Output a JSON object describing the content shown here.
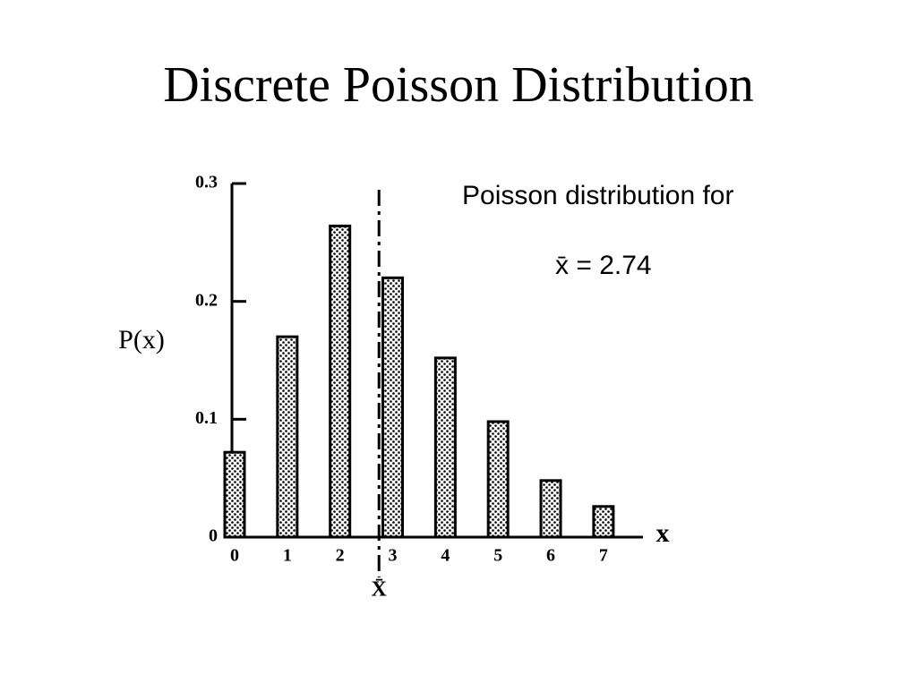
{
  "chart_data": {
    "type": "bar",
    "title": "Discrete Poisson Distribution",
    "x": [
      0,
      1,
      2,
      3,
      4,
      5,
      6,
      7
    ],
    "values": [
      0.072,
      0.17,
      0.264,
      0.22,
      0.152,
      0.098,
      0.048,
      0.026
    ],
    "color": "#000000",
    "xlim": [
      0,
      7.75
    ],
    "xticks": [
      0,
      1,
      2,
      3,
      4,
      5,
      6,
      7
    ],
    "ylim": [
      0,
      0.3
    ],
    "yticks": [
      0,
      0.1,
      0.2,
      0.3
    ],
    "xlabel": "x",
    "ylabel": "P(x)",
    "annotation": "Poisson distribution for",
    "mean": {
      "value": 2.74,
      "label": "x̄ = 2.74"
    },
    "mean_axis_label": "X̄"
  }
}
